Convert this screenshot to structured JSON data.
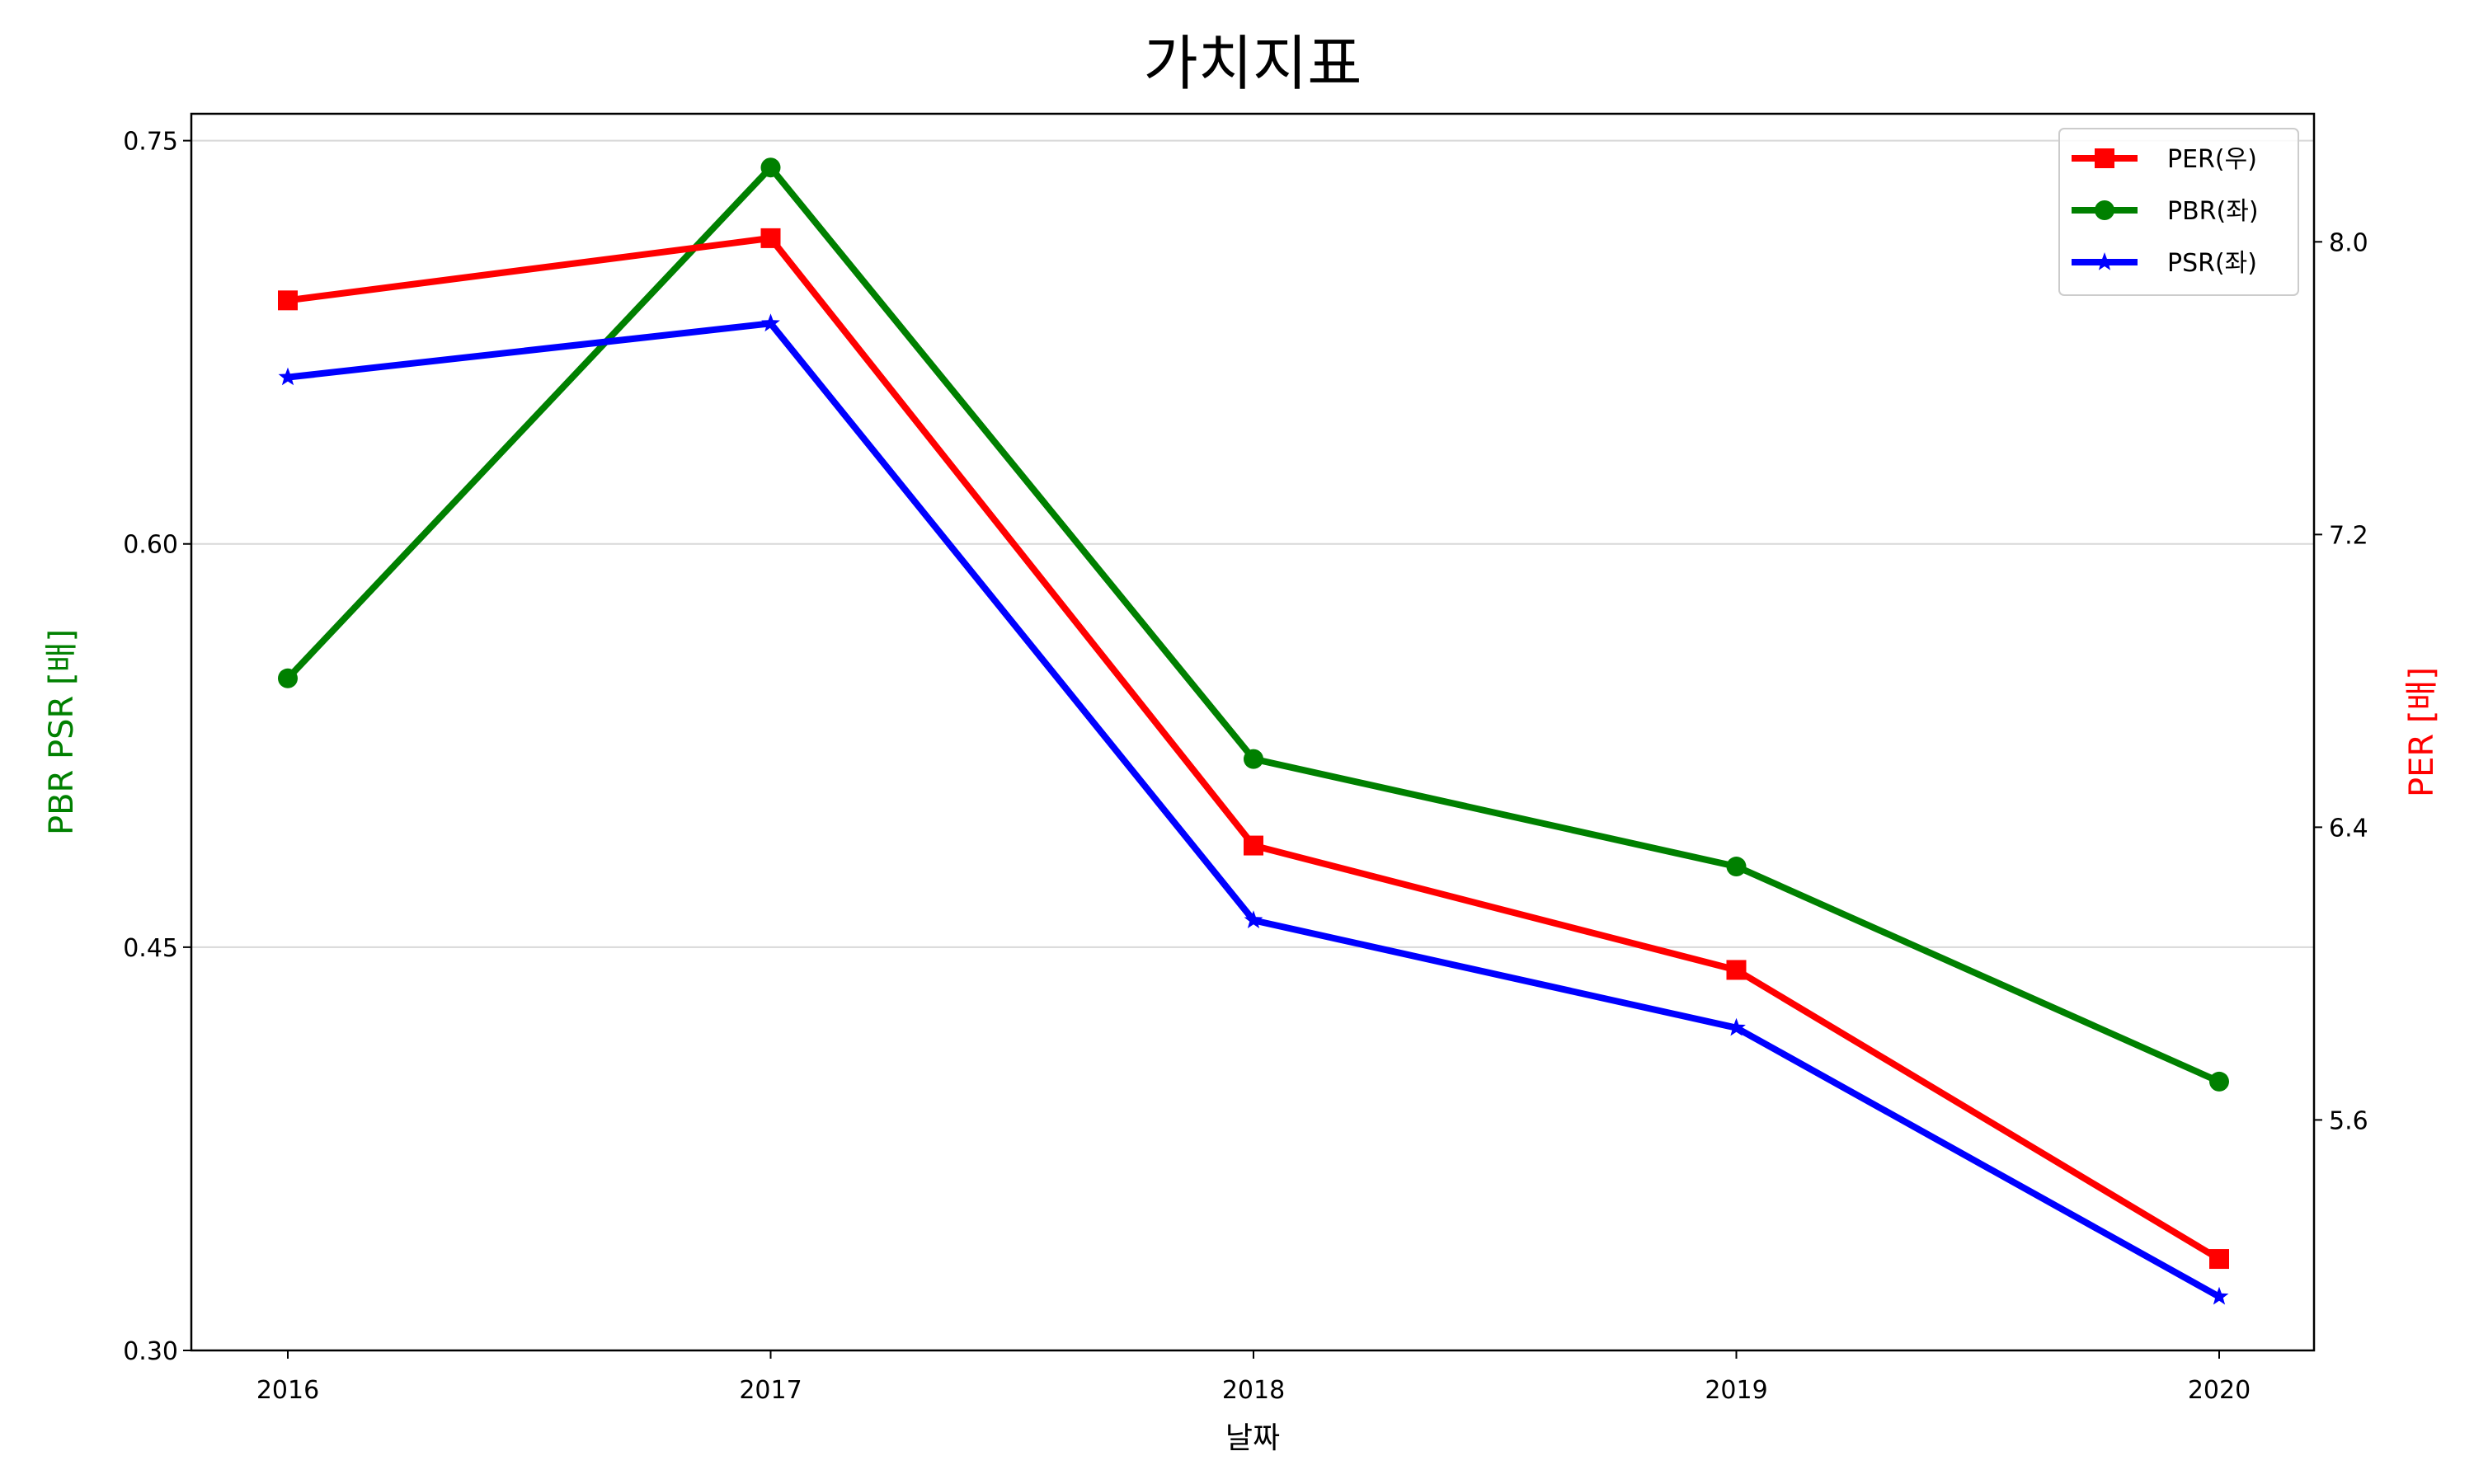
{
  "chart_data": {
    "type": "line",
    "title": "가치지표",
    "xlabel": "날짜",
    "ylabel_left": "PBR PSR [배]",
    "ylabel_right": "PER [배]",
    "x": [
      "2016",
      "2017",
      "2018",
      "2019",
      "2020"
    ],
    "ylim_left": [
      0.3,
      0.76
    ],
    "ylim_right": [
      4.97,
      8.35
    ],
    "yticks_left": [
      "0.30",
      "0.45",
      "0.60",
      "0.75"
    ],
    "yticks_right": [
      "5.6",
      "6.4",
      "7.2",
      "8.0"
    ],
    "grid": "horizontal (left axis)",
    "legend_position": "top-right",
    "series": [
      {
        "name": "PER(우)",
        "axis": "right",
        "color": "#ff0000",
        "marker": "square",
        "values": [
          7.84,
          8.01,
          6.35,
          6.01,
          5.22
        ]
      },
      {
        "name": "PBR(좌)",
        "axis": "left",
        "color": "#008000",
        "marker": "circle",
        "values": [
          0.55,
          0.74,
          0.52,
          0.48,
          0.4
        ]
      },
      {
        "name": "PSR(좌)",
        "axis": "left",
        "color": "#0000ff",
        "marker": "star",
        "values": [
          0.662,
          0.682,
          0.46,
          0.42,
          0.32
        ]
      }
    ],
    "colors": {
      "left_axis_label": "#008000",
      "right_axis_label": "#ff0000",
      "grid": "#d8d8d8"
    }
  }
}
